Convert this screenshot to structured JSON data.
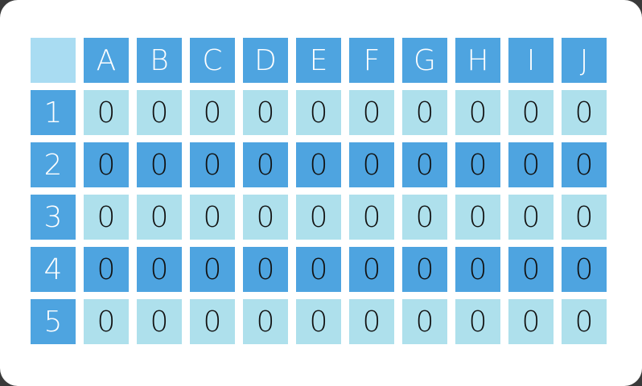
{
  "columns": [
    "A",
    "B",
    "C",
    "D",
    "E",
    "F",
    "G",
    "H",
    "I",
    "J"
  ],
  "rows": [
    {
      "label": "1",
      "values": [
        "0",
        "0",
        "0",
        "0",
        "0",
        "0",
        "0",
        "0",
        "0",
        "0"
      ]
    },
    {
      "label": "2",
      "values": [
        "0",
        "0",
        "0",
        "0",
        "0",
        "0",
        "0",
        "0",
        "0",
        "0"
      ]
    },
    {
      "label": "3",
      "values": [
        "0",
        "0",
        "0",
        "0",
        "0",
        "0",
        "0",
        "0",
        "0",
        "0"
      ]
    },
    {
      "label": "4",
      "values": [
        "0",
        "0",
        "0",
        "0",
        "0",
        "0",
        "0",
        "0",
        "0",
        "0"
      ]
    },
    {
      "label": "5",
      "values": [
        "0",
        "0",
        "0",
        "0",
        "0",
        "0",
        "0",
        "0",
        "0",
        "0"
      ]
    }
  ],
  "colors": {
    "header": "#4ea4e0",
    "light_row": "#aee0ec",
    "corner": "#a9dcf2"
  }
}
